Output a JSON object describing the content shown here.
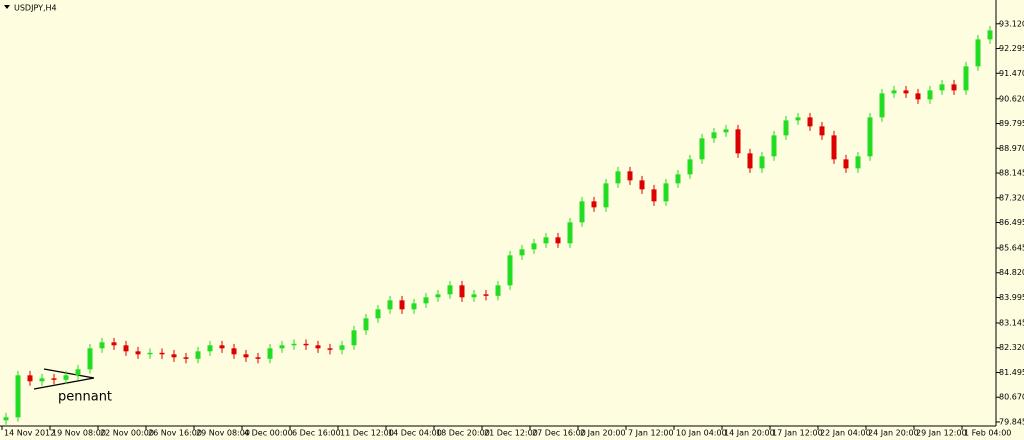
{
  "chart_data": {
    "type": "candlestick",
    "title": "USDJPY,H4",
    "annotation": "pennant",
    "up_color": "#22dd22",
    "down_color": "#dd0000",
    "open": [
      79.9,
      80.0,
      81.4,
      81.2,
      81.3,
      81.25,
      81.4,
      81.6,
      82.3,
      82.5,
      82.4,
      82.2,
      82.1,
      82.15,
      82.1,
      82.0,
      81.95,
      82.2,
      82.4,
      82.3,
      82.1,
      82.0,
      81.95,
      82.3,
      82.4,
      82.45,
      82.4,
      82.3,
      82.25,
      82.4,
      82.9,
      83.3,
      83.6,
      83.9,
      83.6,
      83.8,
      84.0,
      84.1,
      84.4,
      84.0,
      84.1,
      84.05,
      84.4,
      85.4,
      85.6,
      85.8,
      86.0,
      85.8,
      86.5,
      87.2,
      87.0,
      87.8,
      88.2,
      87.9,
      87.6,
      87.2,
      87.8,
      88.1,
      88.6,
      89.3,
      89.5,
      89.6,
      88.8,
      88.3,
      88.7,
      89.4,
      89.9,
      90.0,
      89.7,
      89.4,
      88.6,
      88.3,
      88.7,
      90.0,
      90.8,
      90.9,
      90.8,
      90.6,
      90.9,
      91.1,
      90.9,
      91.7,
      92.6
    ],
    "high": [
      80.15,
      81.55,
      81.55,
      81.45,
      81.45,
      81.55,
      81.75,
      82.45,
      82.65,
      82.65,
      82.55,
      82.35,
      82.3,
      82.3,
      82.25,
      82.15,
      82.35,
      82.55,
      82.55,
      82.45,
      82.25,
      82.15,
      82.45,
      82.55,
      82.6,
      82.6,
      82.55,
      82.45,
      82.55,
      83.05,
      83.45,
      83.75,
      84.05,
      84.05,
      83.95,
      84.15,
      84.25,
      84.55,
      84.55,
      84.25,
      84.25,
      84.55,
      85.55,
      85.75,
      85.95,
      86.15,
      86.15,
      86.65,
      87.35,
      87.35,
      87.95,
      88.35,
      88.35,
      88.05,
      87.75,
      87.95,
      88.25,
      88.75,
      89.45,
      89.65,
      89.75,
      89.75,
      88.95,
      88.85,
      89.55,
      90.05,
      90.15,
      90.15,
      89.85,
      89.55,
      88.75,
      88.85,
      90.15,
      90.95,
      91.05,
      91.05,
      90.95,
      91.05,
      91.25,
      91.25,
      91.85,
      92.75,
      93.05
    ],
    "low": [
      79.75,
      79.85,
      81.05,
      81.05,
      81.1,
      81.1,
      81.25,
      81.45,
      82.15,
      82.25,
      82.05,
      81.95,
      81.95,
      81.95,
      81.85,
      81.8,
      81.8,
      82.05,
      82.15,
      81.95,
      81.85,
      81.8,
      81.8,
      82.15,
      82.25,
      82.25,
      82.15,
      82.1,
      82.1,
      82.25,
      82.75,
      83.15,
      83.45,
      83.45,
      83.45,
      83.65,
      83.85,
      83.95,
      83.85,
      83.85,
      83.9,
      83.9,
      84.25,
      85.25,
      85.45,
      85.65,
      85.65,
      85.65,
      86.35,
      86.85,
      86.85,
      87.65,
      87.75,
      87.45,
      87.05,
      87.05,
      87.65,
      87.95,
      88.45,
      89.15,
      89.35,
      88.65,
      88.15,
      88.15,
      88.55,
      89.25,
      89.75,
      89.55,
      89.25,
      88.45,
      88.15,
      88.15,
      88.55,
      89.85,
      90.65,
      90.65,
      90.45,
      90.45,
      90.75,
      90.75,
      90.75,
      91.55,
      92.45
    ],
    "close": [
      80.0,
      81.4,
      81.2,
      81.3,
      81.25,
      81.4,
      81.6,
      82.3,
      82.5,
      82.4,
      82.2,
      82.1,
      82.15,
      82.1,
      82.0,
      81.95,
      82.2,
      82.4,
      82.3,
      82.1,
      82.0,
      81.95,
      82.3,
      82.4,
      82.45,
      82.4,
      82.3,
      82.25,
      82.4,
      82.9,
      83.3,
      83.6,
      83.9,
      83.6,
      83.8,
      84.0,
      84.1,
      84.4,
      84.0,
      84.1,
      84.05,
      84.4,
      85.4,
      85.6,
      85.8,
      86.0,
      85.8,
      86.5,
      87.2,
      87.0,
      87.8,
      88.2,
      87.9,
      87.6,
      87.2,
      87.8,
      88.1,
      88.6,
      89.3,
      89.5,
      89.6,
      88.8,
      88.3,
      88.7,
      89.4,
      89.9,
      90.0,
      89.7,
      89.4,
      88.6,
      88.3,
      88.7,
      90.0,
      90.8,
      90.9,
      90.8,
      90.6,
      90.9,
      91.1,
      90.9,
      91.7,
      92.6,
      92.9
    ],
    "x_labels": [
      "14 Nov 2012",
      "19 Nov 08:00",
      "22 Nov 00:00",
      "26 Nov 16:00",
      "29 Nov 08:00",
      "4 Dec 00:00",
      "6 Dec 16:00",
      "11 Dec 12:00",
      "14 Dec 04:00",
      "18 Dec 20:00",
      "21 Dec 12:00",
      "27 Dec 16:00",
      "2 Jan 20:00",
      "7 Jan 12:00",
      "10 Jan 04:00",
      "14 Jan 20:00",
      "17 Jan 12:00",
      "22 Jan 04:00",
      "24 Jan 20:00",
      "29 Jan 12:00",
      "1 Feb 04:00"
    ],
    "ylim": [
      79.71,
      93.78
    ],
    "yticks": [
      {
        "value": 93.12,
        "label": "93.120"
      },
      {
        "value": 92.295,
        "label": "92.295"
      },
      {
        "value": 91.47,
        "label": "91.470"
      },
      {
        "value": 90.62,
        "label": "90.620"
      },
      {
        "value": 89.795,
        "label": "89.795"
      },
      {
        "value": 88.97,
        "label": "88.970"
      },
      {
        "value": 88.145,
        "label": "88.145"
      },
      {
        "value": 87.32,
        "label": "87.320"
      },
      {
        "value": 86.495,
        "label": "86.495"
      },
      {
        "value": 85.645,
        "label": "85.645"
      },
      {
        "value": 84.82,
        "label": "84.820"
      },
      {
        "value": 83.995,
        "label": "83.995"
      },
      {
        "value": 83.145,
        "label": "83.145"
      },
      {
        "value": 82.32,
        "label": "82.320"
      },
      {
        "value": 81.495,
        "label": "81.495"
      },
      {
        "value": 80.67,
        "label": "80.670"
      },
      {
        "value": 79.845,
        "label": "79.845"
      }
    ]
  }
}
